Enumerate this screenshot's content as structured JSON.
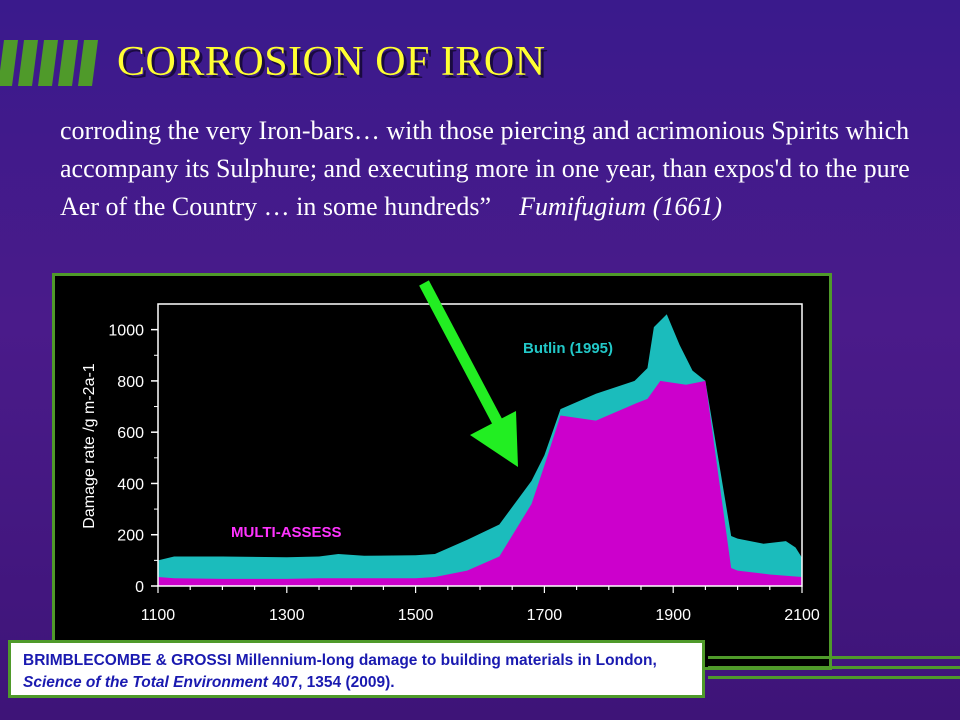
{
  "slide": {
    "title": "CORROSION OF IRON",
    "quote": "corroding the very Iron-bars… with those piercing and acrimonious Spirits which accompany its Sulphure; and executing more in one year, than expos'd to the pure Aer of the Country … in some hundreds”",
    "quote_source": "Fumifugium (1661)",
    "citation": {
      "part1": "BRIMBLECOMBE & GROSSI Millennium-long damage to building materials in London,",
      "journal": "Science of the Total Environment",
      "part2": "407, 1354 (2009)."
    },
    "colors": {
      "title": "#ffff33",
      "accent_green": "#4f9a2a",
      "arrow": "#22ee22",
      "citation_text": "#1a1ab0"
    }
  },
  "chart_data": {
    "type": "area",
    "ylabel": "Damage rate /g m-2a-1",
    "xlim": [
      1100,
      2100
    ],
    "ylim": [
      0,
      1100
    ],
    "x_ticks": [
      1100,
      1300,
      1500,
      1700,
      1900,
      2100
    ],
    "y_ticks": [
      0,
      200,
      400,
      600,
      800,
      1000
    ],
    "series": [
      {
        "name": "Butlin (1995)",
        "color": "#1bbcbc",
        "label_color": "#22c8c8",
        "x": [
          1100,
          1125,
          1200,
          1300,
          1350,
          1380,
          1420,
          1500,
          1530,
          1580,
          1630,
          1680,
          1700,
          1725,
          1780,
          1840,
          1860,
          1870,
          1890,
          1910,
          1930,
          1950,
          1990,
          2000,
          2040,
          2075,
          2090,
          2100
        ],
        "values": [
          100,
          115,
          115,
          112,
          115,
          125,
          118,
          120,
          125,
          180,
          240,
          410,
          510,
          690,
          750,
          800,
          850,
          1010,
          1060,
          940,
          840,
          800,
          195,
          185,
          165,
          175,
          150,
          110
        ]
      },
      {
        "name": "MULTI-ASSESS",
        "color": "#cc00cc",
        "label_color": "#ff33ff",
        "x": [
          1100,
          1125,
          1200,
          1300,
          1350,
          1400,
          1500,
          1530,
          1580,
          1630,
          1680,
          1700,
          1725,
          1780,
          1840,
          1860,
          1880,
          1920,
          1950,
          1990,
          2000,
          2050,
          2100
        ],
        "values": [
          35,
          30,
          28,
          28,
          30,
          30,
          30,
          35,
          60,
          115,
          320,
          470,
          665,
          645,
          710,
          730,
          800,
          785,
          800,
          70,
          60,
          45,
          35
        ]
      }
    ]
  }
}
